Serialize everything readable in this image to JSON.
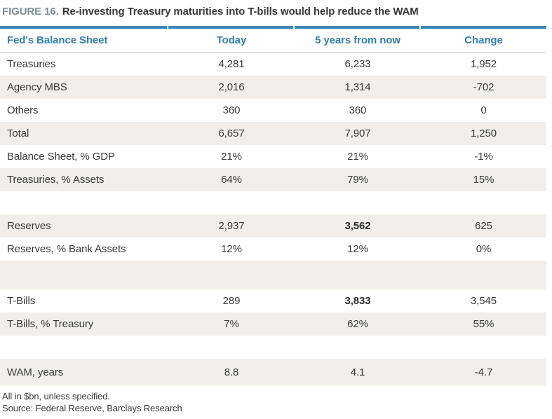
{
  "title": {
    "figure_label": "FIGURE 16.",
    "text": "Re-investing Treasury maturities into T-bills would help reduce the WAM"
  },
  "table": {
    "columns": [
      "Fed's Balance Sheet",
      "Today",
      "5 years from now",
      "Change"
    ],
    "rows": [
      {
        "label": "Treasuries",
        "today": "4,281",
        "five_years": "6,233",
        "change": "1,952"
      },
      {
        "label": "Agency MBS",
        "today": "2,016",
        "five_years": "1,314",
        "change": "-702"
      },
      {
        "label": "Others",
        "today": "360",
        "five_years": "360",
        "change": "0"
      },
      {
        "label": "Total",
        "today": "6,657",
        "five_years": "7,907",
        "change": "1,250"
      },
      {
        "label": "Balance Sheet, % GDP",
        "today": "21%",
        "five_years": "21%",
        "change": "-1%"
      },
      {
        "label": "Treasuries, % Assets",
        "today": "64%",
        "five_years": "79%",
        "change": "15%"
      },
      {
        "spacer": true
      },
      {
        "label": "Reserves",
        "today": "2,937",
        "five_years": "3,562",
        "change": "625",
        "bold_five_years": true
      },
      {
        "label": "Reserves, % Bank Assets",
        "today": "12%",
        "five_years": "12%",
        "change": "0%"
      },
      {
        "spacer": true,
        "tall": true
      },
      {
        "label": "T-Bills",
        "today": "289",
        "five_years": "3,833",
        "change": "3,545",
        "bold_five_years": true
      },
      {
        "label": "T-Bills, % Treasury",
        "today": "7%",
        "five_years": "62%",
        "change": "55%"
      },
      {
        "spacer": true
      },
      {
        "label": "WAM, years",
        "today": "8.8",
        "five_years": "4.1",
        "change": "-4.7",
        "tall": true
      }
    ]
  },
  "footnotes": [
    "All in $bn, unless specified.",
    "Source: Federal Reserve, Barclays Research"
  ],
  "colors": {
    "accent_blue": "#3e86b8",
    "header_text_blue": "#337fb3",
    "figure_label_gray": "#7f8d97",
    "row_stripe_beige": "#f2eee9",
    "body_text": "#3a3a3a"
  }
}
